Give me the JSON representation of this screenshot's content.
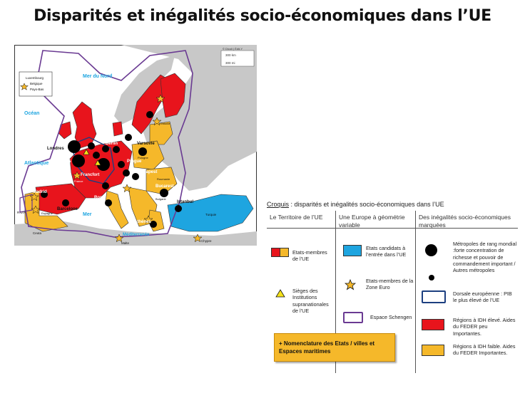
{
  "title": "Disparités et inégalités socio-économiques dans l’UE",
  "map": {
    "copyright": "© Dicoli | Édit-Y",
    "scale": [
      "300 km",
      "300 mi"
    ],
    "inset": [
      "Luxembourg",
      "Belgique",
      "Pays-Bas"
    ],
    "seas": [
      "Mer du Nord",
      "Océan",
      "Atlantique",
      "Mer",
      "Méditerranée"
    ],
    "cities": [
      "Londres",
      "Paris",
      "Berlin",
      "Varsovie",
      "Prague",
      "Budapest",
      "Bucarest",
      "Madrid",
      "Barcelone",
      "Rome",
      "Athènes",
      "Istanbul",
      "Francfort"
    ],
    "places": [
      "R.U.P.",
      "Ceuta",
      "Malte",
      "Chypre",
      "Turquie",
      "Estonie",
      "Pologne",
      "Bulgarie",
      "Roumanie",
      "France",
      "Espagne"
    ],
    "colors": {
      "sea": "#ffffff",
      "eu_red": "#e8141c",
      "eu_yellow": "#f5b82a",
      "candidate_blue": "#1ea5e0",
      "schengen": "#6a3a92",
      "land_grey": "#c8c8c8",
      "metro": "#000000"
    }
  },
  "caption": {
    "prefix": "Croquis",
    "rest": " : disparités et inégalités socio-économiques dans l’UE"
  },
  "legend": {
    "headers": [
      "Le Territoire de l’UE",
      "Une Europe à géométrie variable",
      "Des inégalités socio-économiques marquées"
    ],
    "c1": {
      "states": "Etats-membres de l’UE",
      "seats": "Sièges des Institutions supranationales de l’UE"
    },
    "c2": {
      "candidates": "Etats candidats à l’entrée dans l’UE",
      "euro": "Etats-membres de la Zone Euro",
      "schengen": "Espace Schengen"
    },
    "c3": {
      "big_metro": "Métropoles de rang mondial :forte concentration de richesse et pouvoir de commandement important / Autres métropoles",
      "dorsale": "Dorsale européenne : PIB le plus élevé de l’UE",
      "high_idh": "Régions à IDH élevé. Aides du FEDER peu Importantes.",
      "low_idh": "Régions à IDH faible. Aides du FEDER Importantes."
    },
    "nomenclature": "+ Nomenclature des Etats / villes et Espaces maritimes"
  }
}
